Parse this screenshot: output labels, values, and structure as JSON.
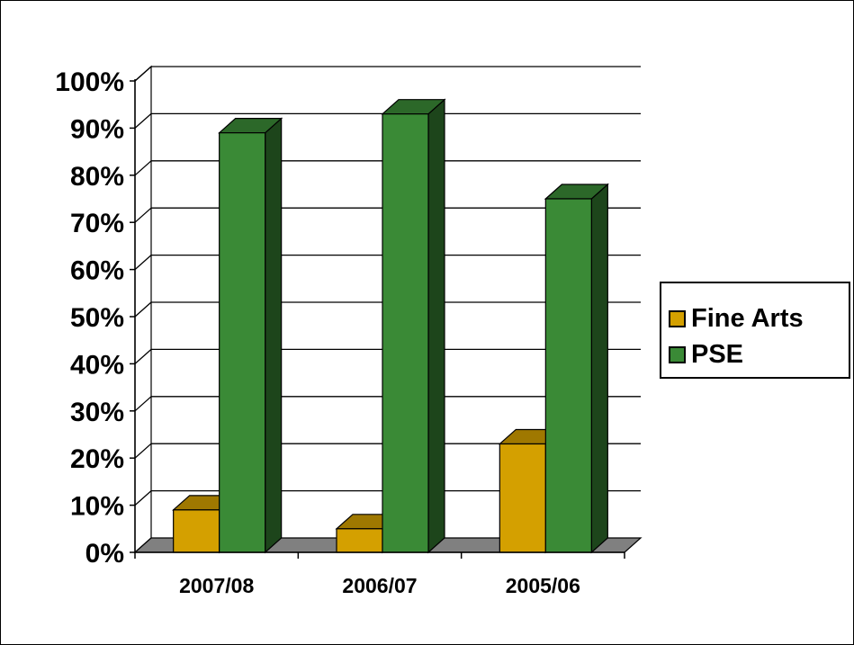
{
  "chart_data": {
    "type": "bar",
    "categories": [
      "2007/08",
      "2006/07",
      "2005/06"
    ],
    "series": [
      {
        "name": "Fine Arts",
        "values": [
          9,
          5,
          23
        ],
        "color": "#D4A000"
      },
      {
        "name": "PSE",
        "values": [
          89,
          93,
          75
        ],
        "color": "#3A8A36"
      }
    ],
    "ylim": [
      0,
      100
    ],
    "y_ticks": [
      "0%",
      "10%",
      "20%",
      "30%",
      "40%",
      "50%",
      "60%",
      "70%",
      "80%",
      "90%",
      "100%"
    ],
    "grid": true,
    "legend_position": "right",
    "title": "",
    "xlabel": "",
    "ylabel": ""
  }
}
